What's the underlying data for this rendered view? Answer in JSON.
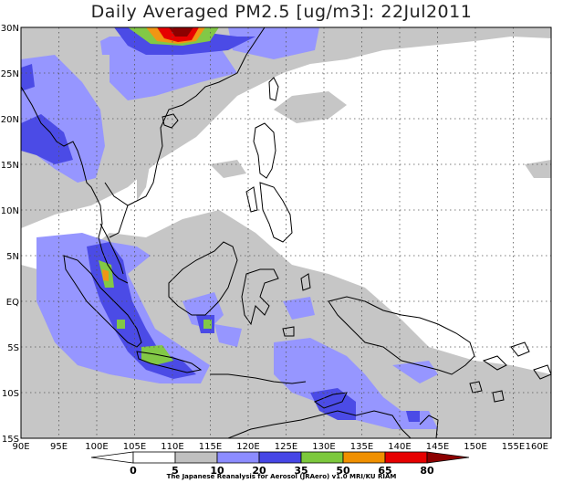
{
  "title": "Daily Averaged PM2.5 [ug/m3]: 22Jul2011",
  "credit": "The Japanese Reanalysis for Aerosol (JRAero) v1.0 MRI/KU RIAM",
  "lat_labels": [
    "30N",
    "25N",
    "20N",
    "15N",
    "10N",
    "5N",
    "EQ",
    "5S",
    "10S",
    "15S"
  ],
  "lon_labels": [
    "90E",
    "95E",
    "100E",
    "105E",
    "110E",
    "115E",
    "120E",
    "125E",
    "130E",
    "135E",
    "140E",
    "145E",
    "150E",
    "155E",
    "160E"
  ],
  "colorbar": {
    "levels": [
      "0",
      "5",
      "10",
      "20",
      "35",
      "50",
      "65",
      "80"
    ],
    "colors": [
      "#ffffff",
      "#ffffff",
      "#c0c0c0",
      "#8c8cff",
      "#4646e6",
      "#7cc83c",
      "#f09000",
      "#e60000",
      "#8c0000"
    ]
  },
  "fill_colors": {
    "light_gray": "#c6c6c6",
    "light_blue": "#9696ff",
    "blue": "#4b4be6",
    "green": "#82c846",
    "orange": "#f09614",
    "red": "#e60000",
    "dark_red": "#8c0000"
  }
}
